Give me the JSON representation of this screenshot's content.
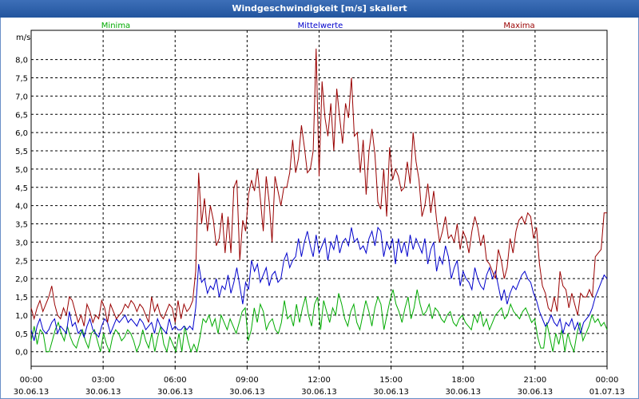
{
  "window": {
    "title": "Windgeschwindigkeit [m/s] skaliert"
  },
  "chart_data": {
    "type": "line",
    "title": "Windgeschwindigkeit [m/s] skaliert",
    "ylabel": "m/s",
    "ylim": [
      -0.4,
      8.8
    ],
    "xlim": [
      0,
      192
    ],
    "y_ticks": [
      0,
      0.5,
      1,
      1.5,
      2,
      2.5,
      3,
      3.5,
      4,
      4.5,
      5,
      5.5,
      6,
      6.5,
      7,
      7.5,
      8
    ],
    "y_tick_labels": [
      "0,0",
      "0,5",
      "1,0",
      "1,5",
      "2,0",
      "2,5",
      "3,0",
      "3,5",
      "4,0",
      "4,5",
      "5,0",
      "5,5",
      "6,0",
      "6,5",
      "7,0",
      "7,5",
      "8,0"
    ],
    "x_ticks": [
      {
        "pos": 0,
        "time": "00:00",
        "date": "30.06.13"
      },
      {
        "pos": 24,
        "time": "03:00",
        "date": "30.06.13"
      },
      {
        "pos": 48,
        "time": "06:00",
        "date": "30.06.13"
      },
      {
        "pos": 72,
        "time": "09:00",
        "date": "30.06.13"
      },
      {
        "pos": 96,
        "time": "12:00",
        "date": "30.06.13"
      },
      {
        "pos": 120,
        "time": "15:00",
        "date": "30.06.13"
      },
      {
        "pos": 144,
        "time": "18:00",
        "date": "30.06.13"
      },
      {
        "pos": 168,
        "time": "21:00",
        "date": "30.06.13"
      },
      {
        "pos": 192,
        "time": "00:00",
        "date": "01.07.13"
      }
    ],
    "grid": true,
    "legend_position": "top",
    "series": [
      {
        "name": "Minima",
        "color": "#00aa00",
        "values": [
          0.3,
          0.7,
          0.2,
          0.6,
          0.5,
          0,
          0,
          0.3,
          0.6,
          0.8,
          0.5,
          0.3,
          0.7,
          0.4,
          0.2,
          0.1,
          0.4,
          0.6,
          0.3,
          0.1,
          0.5,
          0.6,
          0.3,
          0,
          0.5,
          0.2,
          0,
          0.4,
          0.6,
          0.5,
          0.3,
          0.4,
          0.6,
          0.5,
          0.3,
          0,
          0.2,
          0.6,
          0.3,
          0.1,
          0.5,
          0,
          0.4,
          0.7,
          0.2,
          0,
          0.4,
          0.2,
          0,
          0.5,
          0,
          0.7,
          0.3,
          0,
          0.2,
          0,
          0.4,
          0.9,
          0.8,
          1,
          0.7,
          0.9,
          0.5,
          1,
          0.8,
          0.6,
          0.9,
          0.7,
          0.5,
          0.8,
          1.1,
          1.2,
          0.3,
          0.6,
          1.2,
          0.8,
          1.3,
          1.1,
          0.6,
          0.8,
          0.9,
          0.6,
          0.5,
          0.8,
          1.4,
          0.9,
          1,
          0.7,
          1.3,
          0.8,
          1.2,
          1.5,
          1,
          0.7,
          1.3,
          1.5,
          0.6,
          1.4,
          1.1,
          0.8,
          1.2,
          1,
          1.6,
          1.3,
          0.9,
          0.7,
          1.1,
          1.3,
          0.8,
          0.6,
          1,
          1.4,
          1.1,
          0.7,
          1.2,
          1.5,
          1.3,
          0.6,
          1,
          1.4,
          1.7,
          1.3,
          1.1,
          0.8,
          1.2,
          1.5,
          0.9,
          1.2,
          1.7,
          1.3,
          1,
          1.1,
          1.3,
          0.9,
          1.2,
          1.1,
          0.9,
          0.8,
          1,
          1.1,
          0.8,
          0.7,
          0.9,
          1,
          0.8,
          0.7,
          0.6,
          1,
          0.8,
          1.1,
          0.7,
          0.9,
          0.6,
          0.8,
          1,
          1.1,
          1.2,
          0.9,
          1,
          1.3,
          1.1,
          1,
          0.9,
          1.1,
          1.2,
          1,
          0.8,
          0.9,
          0.4,
          0.1,
          0.1,
          0.8,
          0.4,
          0,
          0.5,
          0.2,
          0.6,
          0,
          0.5,
          0.2,
          0,
          0.5,
          0.8,
          0.3,
          0.5,
          0.7,
          1,
          0.8,
          0.9,
          0.7,
          0.8,
          0.6
        ]
      },
      {
        "name": "Mittelwerte",
        "color": "#0000cc",
        "values": [
          0.6,
          0.3,
          0.7,
          0.9,
          0.6,
          0.5,
          0.6,
          0.8,
          0.9,
          0.5,
          0.7,
          0.6,
          0.5,
          1.1,
          0.7,
          0.8,
          0.5,
          0.6,
          0.4,
          0.7,
          0.9,
          0.6,
          0.5,
          0.4,
          0.7,
          0.9,
          0.8,
          0.5,
          0.7,
          0.9,
          0.8,
          0.9,
          1.0,
          0.8,
          0.9,
          0.8,
          0.7,
          0.9,
          0.8,
          0.6,
          0.7,
          0.8,
          0.5,
          0.9,
          0.7,
          0.6,
          0.5,
          0.9,
          0.6,
          0.7,
          0.6,
          0.6,
          0.7,
          0.6,
          0.7,
          0.6,
          1.2,
          2.4,
          1.9,
          2.0,
          1.6,
          1.8,
          1.7,
          2.0,
          1.5,
          1.8,
          1.7,
          2.1,
          1.6,
          1.9,
          2.3,
          1.8,
          1.3,
          1.9,
          1.7,
          2.5,
          2.2,
          2.4,
          1.9,
          2.1,
          2.3,
          1.8,
          2.1,
          2.2,
          1.9,
          2.0,
          2.5,
          2.7,
          2.3,
          2.5,
          2.6,
          3.1,
          2.6,
          3.0,
          3.3,
          2.9,
          2.6,
          3.2,
          2.7,
          2.9,
          3.1,
          2.5,
          3.0,
          2.8,
          3.2,
          2.7,
          3.0,
          3.1,
          2.9,
          3.4,
          3.0,
          3.1,
          2.8,
          2.9,
          2.7,
          3.1,
          3.3,
          2.9,
          3.4,
          3.3,
          2.6,
          3.0,
          2.8,
          3.1,
          2.4,
          3.1,
          2.7,
          3.0,
          2.6,
          3.2,
          2.8,
          3.1,
          2.9,
          2.7,
          3.1,
          2.4,
          2.8,
          3.0,
          2.2,
          2.6,
          2.4,
          2.9,
          2.6,
          2.0,
          2.3,
          2.5,
          1.8,
          2.2,
          2.0,
          1.9,
          1.7,
          2.3,
          2.0,
          1.8,
          1.7,
          2.1,
          2.3,
          2.0,
          2.2,
          1.8,
          1.4,
          1.7,
          1.3,
          1.6,
          1.8,
          1.7,
          1.9,
          2.1,
          2.2,
          2.0,
          1.9,
          1.6,
          1.4,
          1.1,
          0.9,
          0.7,
          0.8,
          1.0,
          0.8,
          0.7,
          0.9,
          0.5,
          0.8,
          0.7,
          0.9,
          0.6,
          0.8,
          0.5,
          0.8,
          0.9,
          1.0,
          1.2,
          1.5,
          1.7,
          1.9,
          2.1,
          2.0
        ]
      },
      {
        "name": "Maxima",
        "color": "#990000",
        "values": [
          1.2,
          0.9,
          1.2,
          1.4,
          1.1,
          1.3,
          1.5,
          1.8,
          1.3,
          1.0,
          0.9,
          1.2,
          1.0,
          1.5,
          1.4,
          1.1,
          0.8,
          1.0,
          0.7,
          1.3,
          1.1,
          0.8,
          1.0,
          0.9,
          1.4,
          1.2,
          0.8,
          1.3,
          1.1,
          0.9,
          1.0,
          1.1,
          1.3,
          1.2,
          1.4,
          1.3,
          1.1,
          1.3,
          1.2,
          1.0,
          0.8,
          1.5,
          1.1,
          1.3,
          1.0,
          0.9,
          1.1,
          1.3,
          1.2,
          0.8,
          1.4,
          0.9,
          1.3,
          1.1,
          1.2,
          1.4,
          2.2,
          4.9,
          3.5,
          4.2,
          3.3,
          4.0,
          3.6,
          2.9,
          3.1,
          3.8,
          2.7,
          3.7,
          2.7,
          4.5,
          4.7,
          2.5,
          3.6,
          3.3,
          4.3,
          4.7,
          4.4,
          5.0,
          4.2,
          3.3,
          4.8,
          4.1,
          3.0,
          4.8,
          4.4,
          4.0,
          4.5,
          4.5,
          4.9,
          5.8,
          4.9,
          5.3,
          6.2,
          5.6,
          4.9,
          5.0,
          5.5,
          8.3,
          4.8,
          7.4,
          6.4,
          5.9,
          6.8,
          5.5,
          7.2,
          6.4,
          5.7,
          6.8,
          6.4,
          7.5,
          5.9,
          6.0,
          4.9,
          5.8,
          4.3,
          5.5,
          6.1,
          5.4,
          4.1,
          3.9,
          5.0,
          3.7,
          5.6,
          4.7,
          5.0,
          4.8,
          4.4,
          4.5,
          5.2,
          4.6,
          6.0,
          5.2,
          4.7,
          3.7,
          4.0,
          4.6,
          3.8,
          4.4,
          3.6,
          3.0,
          3.3,
          3.7,
          3.1,
          3.2,
          3.0,
          3.5,
          2.8,
          3.3,
          3.1,
          2.7,
          3.3,
          3.7,
          3.4,
          2.9,
          3.2,
          2.5,
          2.4,
          2.2,
          2.0,
          2.8,
          2.5,
          2.0,
          2.3,
          3.1,
          2.7,
          3.3,
          3.6,
          3.7,
          3.5,
          3.8,
          3.7,
          3.1,
          3.4,
          2.4,
          1.8,
          1.6,
          1.2,
          1.1,
          1.5,
          1.1,
          2.2,
          1.8,
          1.7,
          1.2,
          1.6,
          1.3,
          1.0,
          1.6,
          1.5,
          1.5,
          1.7,
          1.5,
          2.6,
          2.7,
          2.8,
          3.8,
          3.8
        ]
      }
    ]
  }
}
